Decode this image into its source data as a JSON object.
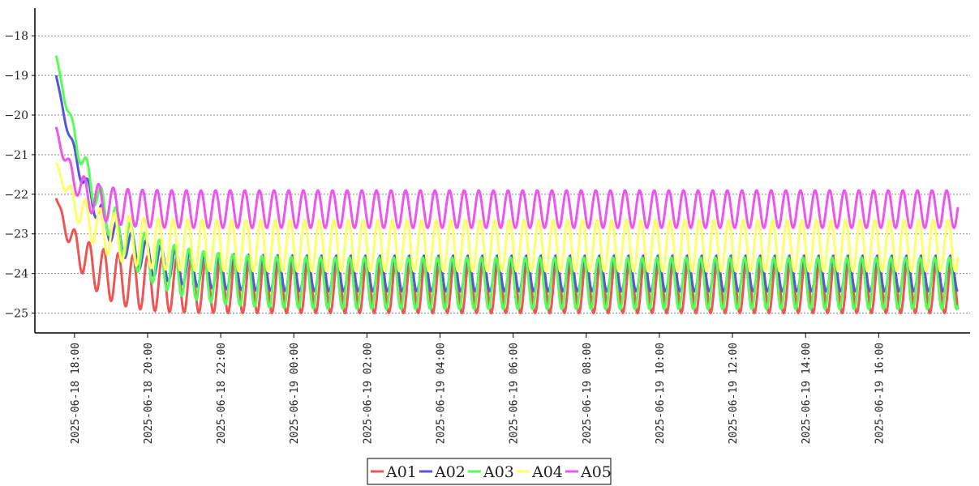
{
  "chart_data": {
    "type": "line",
    "title": "",
    "xlabel": "",
    "ylabel": "",
    "ylim": [
      -25.5,
      -17.3
    ],
    "xlim": [
      "2025-06-18 16:55",
      "2025-06-19 18:30"
    ],
    "grid": {
      "y": true,
      "x": false,
      "style": "dotted"
    },
    "legend_position": "bottom-center",
    "x_tick_labels": [
      "2025-06-18 18:00",
      "2025-06-18 20:00",
      "2025-06-18 22:00",
      "2025-06-19 00:00",
      "2025-06-19 02:00",
      "2025-06-19 04:00",
      "2025-06-19 06:00",
      "2025-06-19 08:00",
      "2025-06-19 10:00",
      "2025-06-19 12:00",
      "2025-06-19 14:00",
      "2025-06-19 16:00"
    ],
    "y_ticks": [
      -18,
      -19,
      -20,
      -21,
      -22,
      -23,
      -24,
      -25
    ],
    "y_tick_labels": [
      "−18",
      "−19",
      "−20",
      "−21",
      "−22",
      "−23",
      "−24",
      "−25"
    ],
    "series": [
      {
        "name": "A01",
        "color": "#ee5555",
        "start": "2025-06-18 17:30",
        "end": "2025-06-19 18:10",
        "initial": -22.1,
        "settle_minutes": 40,
        "oscillation_low": -25.0,
        "oscillation_high": -23.6,
        "period_minutes": 24
      },
      {
        "name": "A02",
        "color": "#5555dd",
        "start": "2025-06-18 17:30",
        "end": "2025-06-19 18:10",
        "initial": -19.0,
        "settle_minutes": 60,
        "oscillation_low": -24.45,
        "oscillation_high": -23.55,
        "period_minutes": 24
      },
      {
        "name": "A03",
        "color": "#55ff55",
        "start": "2025-06-18 17:30",
        "end": "2025-06-19 18:10",
        "initial": -18.5,
        "settle_minutes": 70,
        "oscillation_low": -24.9,
        "oscillation_high": -23.6,
        "period_minutes": 24
      },
      {
        "name": "A04",
        "color": "#ffff66",
        "start": "2025-06-18 17:30",
        "end": "2025-06-19 18:10",
        "initial": -21.2,
        "settle_minutes": 45,
        "oscillation_low": -23.95,
        "oscillation_high": -22.65,
        "period_minutes": 24
      },
      {
        "name": "A05",
        "color": "#ee55ee",
        "start": "2025-06-18 17:30",
        "end": "2025-06-19 18:10",
        "initial": -20.3,
        "settle_minutes": 30,
        "oscillation_low": -22.85,
        "oscillation_high": -21.9,
        "period_minutes": 24
      }
    ]
  }
}
